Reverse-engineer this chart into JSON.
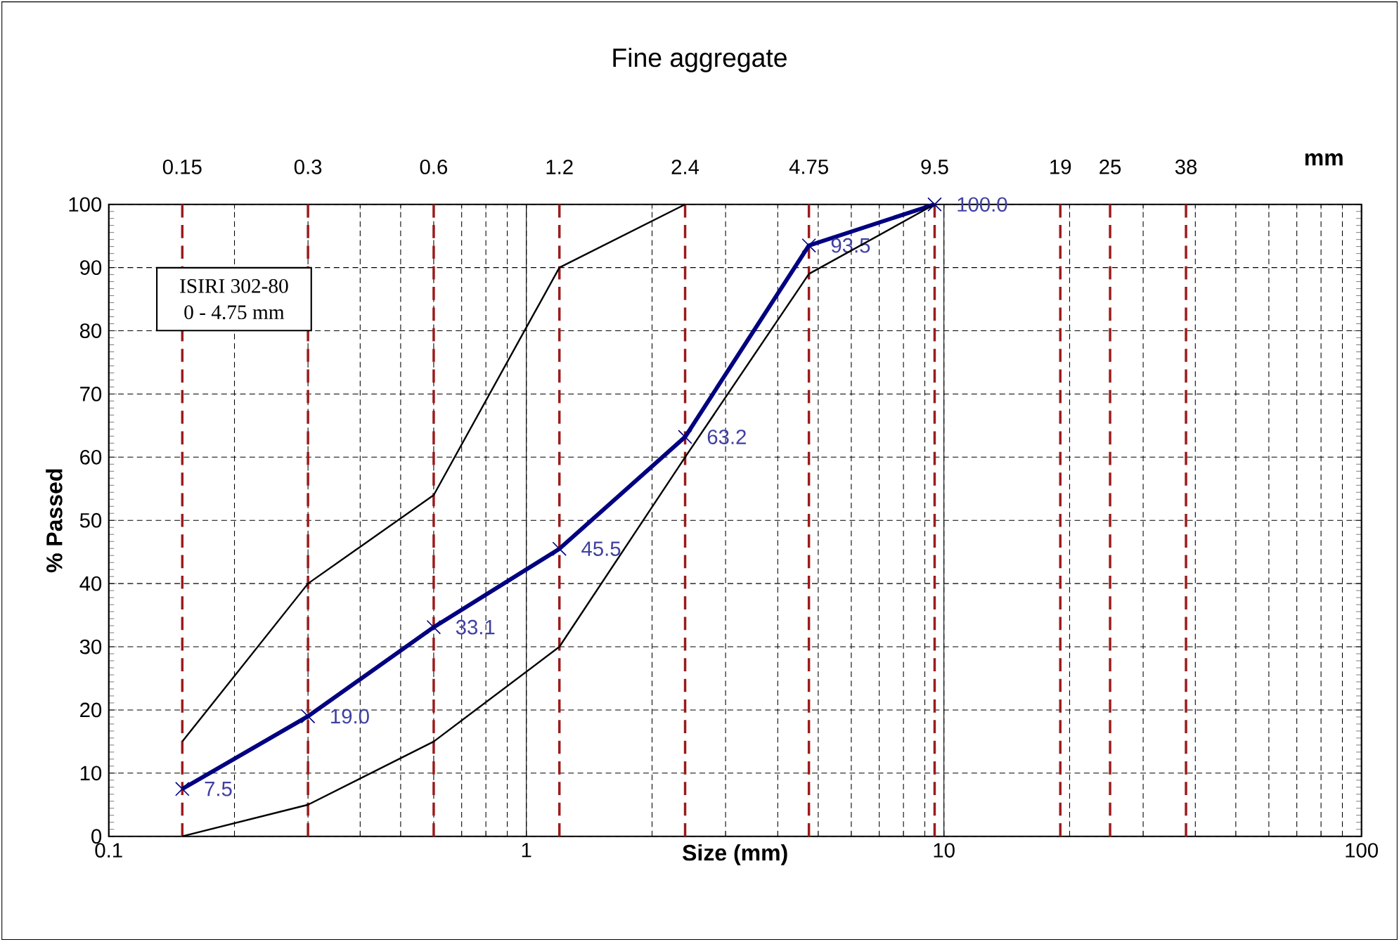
{
  "chart_data": {
    "type": "line",
    "title": "Fine aggregate",
    "xlabel": "Size (mm)",
    "ylabel": "% Passed",
    "log": "x",
    "xlim": [
      0.1,
      100
    ],
    "xticks": [
      0.1,
      1,
      10,
      100
    ],
    "ylim": [
      0,
      100
    ],
    "yticks": [
      0,
      10,
      20,
      30,
      40,
      50,
      60,
      70,
      80,
      90,
      100
    ],
    "grid": true,
    "series": [
      {
        "color": "#000080",
        "marker": "cross",
        "x": [
          0.15,
          0.3,
          0.6,
          1.2,
          2.4,
          4.75,
          9.5
        ],
        "values": [
          7.5,
          19.0,
          33.1,
          45.5,
          63.2,
          93.5,
          100.0
        ],
        "value_labels": [
          "7.5",
          "19.0",
          "33.1",
          "45.5",
          "63.2",
          "93.5",
          "100.0"
        ]
      },
      {
        "color": "#000000",
        "marker": "none",
        "x": [
          0.15,
          0.3,
          0.6,
          1.2,
          2.4
        ],
        "values": [
          15,
          40,
          54,
          90,
          100
        ]
      },
      {
        "color": "#000000",
        "marker": "none",
        "x": [
          0.15,
          0.3,
          0.6,
          1.2,
          2.4,
          4.75,
          9.5
        ],
        "values": [
          0,
          5,
          15,
          30,
          60,
          89,
          100
        ]
      }
    ],
    "ref_lines": [
      {
        "axis": "x",
        "value": 0.15,
        "label": "0.15",
        "color": "#9b1b1b",
        "line_style": "dashed"
      },
      {
        "axis": "x",
        "value": 0.3,
        "label": "0.3",
        "color": "#9b1b1b",
        "line_style": "dashed"
      },
      {
        "axis": "x",
        "value": 0.6,
        "label": "0.6",
        "color": "#9b1b1b",
        "line_style": "dashed"
      },
      {
        "axis": "x",
        "value": 1.2,
        "label": "1.2",
        "color": "#9b1b1b",
        "line_style": "dashed"
      },
      {
        "axis": "x",
        "value": 2.4,
        "label": "2.4",
        "color": "#9b1b1b",
        "line_style": "dashed"
      },
      {
        "axis": "x",
        "value": 4.75,
        "label": "4.75",
        "color": "#9b1b1b",
        "line_style": "dashed"
      },
      {
        "axis": "x",
        "value": 9.5,
        "label": "9.5",
        "color": "#9b1b1b",
        "line_style": "dashed"
      },
      {
        "axis": "x",
        "value": 19,
        "label": "19",
        "color": "#9b1b1b",
        "line_style": "dashed"
      },
      {
        "axis": "x",
        "value": 25,
        "label": "25",
        "color": "#9b1b1b",
        "line_style": "dashed"
      },
      {
        "axis": "x",
        "value": 38,
        "label": "38",
        "color": "#9b1b1b",
        "line_style": "dashed"
      }
    ],
    "annotations": [
      "ISIRI 302-80",
      "0 - 4.75 mm",
      "mm"
    ]
  }
}
